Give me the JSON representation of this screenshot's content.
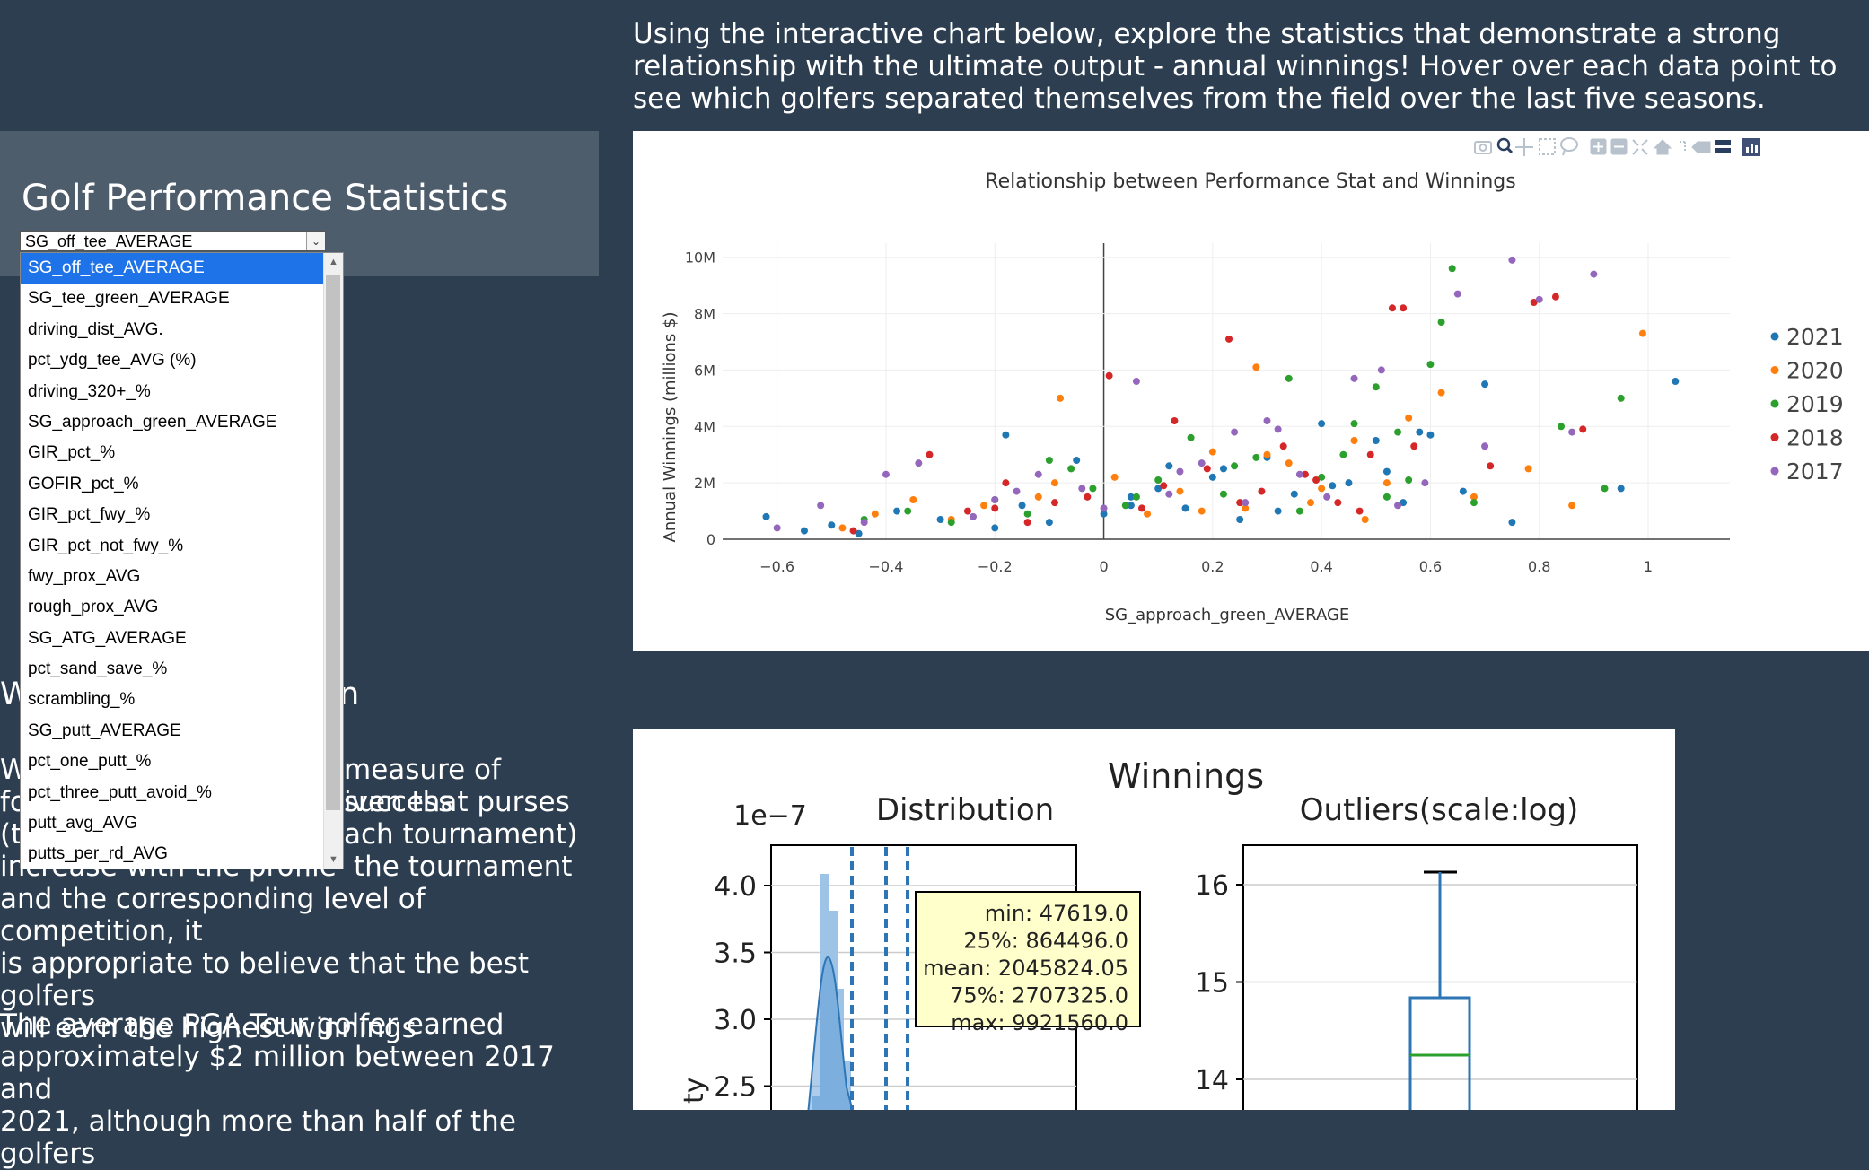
{
  "intro_text": "Using the interactive chart below, explore the statistics that demonstrate a strong relationship with the ultimate output - annual winnings! Hover over each data point to see which golfers separated themselves from the field over the last five seasons.",
  "panel": {
    "title": "Golf Performance Statistics",
    "selected_value": "SG_off_tee_AVERAGE",
    "options": [
      "SG_off_tee_AVERAGE",
      "SG_tee_green_AVERAGE",
      "driving_dist_AVG.",
      "pct_ydg_tee_AVG (%)",
      "driving_320+_%",
      "SG_approach_green_AVERAGE",
      "GIR_pct_%",
      "GOFIR_pct_%",
      "GIR_pct_fwy_%",
      "GIR_pct_not_fwy_%",
      "fwy_prox_AVG",
      "rough_prox_AVG",
      "SG_ATG_AVERAGE",
      "pct_sand_save_%",
      "scrambling_%",
      "SG_putt_AVERAGE",
      "pct_one_putt_%",
      "pct_three_putt_avoid_%",
      "putt_avg_AVG",
      "putts_per_rd_AVG"
    ]
  },
  "left_text": {
    "heading_start": "W",
    "heading_end": "n",
    "para1_line1_start": "W",
    "para1_line1_end": "measure of success",
    "para1_line2_start": "fo",
    "para1_line2_end": "iven that purses",
    "para1_line3_start": "(t",
    "para1_line3_end": "ach tournament)",
    "para1_line4_start": "increase with the profile",
    "para1_line4_end": "the tournament",
    "para1_line5": "and the corresponding level of competition, it",
    "para1_line6": "is appropriate to believe that the best golfers",
    "para1_line7": "will earn the highest winnings",
    "para2_line1": "The average PGA Tour golfer earned",
    "para2_line2": "approximately $2 million between 2017 and",
    "para2_line3": "2021, although more than half of the golfers"
  },
  "chart_data": [
    {
      "type": "scatter",
      "title": "Relationship between Performance Stat and Winnings",
      "xlabel": "SG_approach_green_AVERAGE",
      "ylabel": "Annual Winnings (millions $)",
      "xlim": [
        -0.7,
        1.15
      ],
      "ylim": [
        0,
        10500000
      ],
      "x_ticks": [
        "−0.6",
        "−0.4",
        "−0.2",
        "0",
        "0.2",
        "0.4",
        "0.6",
        "0.8",
        "1"
      ],
      "x_tick_values": [
        -0.6,
        -0.4,
        -0.2,
        0,
        0.2,
        0.4,
        0.6,
        0.8,
        1
      ],
      "y_ticks": [
        "0",
        "2M",
        "4M",
        "6M",
        "8M",
        "10M"
      ],
      "y_tick_values": [
        0,
        2000000,
        4000000,
        6000000,
        8000000,
        10000000
      ],
      "legend_position": "right",
      "series": [
        {
          "name": "2021",
          "color": "#1f77b4",
          "x": [
            -0.62,
            -0.55,
            -0.5,
            -0.45,
            -0.38,
            -0.3,
            -0.2,
            -0.15,
            -0.1,
            -0.05,
            0,
            0.05,
            0.1,
            0.15,
            0.2,
            0.25,
            0.3,
            0.35,
            0.4,
            0.45,
            0.5,
            0.55,
            0.6,
            0.7,
            0.75,
            1.05,
            0.05,
            0.22,
            0.42,
            0.58,
            0.66,
            -0.18,
            0.12,
            0.32,
            0.52,
            0.95
          ],
          "y": [
            800000,
            300000,
            500000,
            200000,
            1000000,
            700000,
            400000,
            1200000,
            600000,
            2800000,
            900000,
            1500000,
            1800000,
            1100000,
            2200000,
            700000,
            2900000,
            1600000,
            4100000,
            2000000,
            3500000,
            1300000,
            3700000,
            5500000,
            600000,
            5600000,
            1200000,
            2500000,
            1900000,
            3800000,
            1700000,
            3700000,
            2600000,
            1000000,
            2400000,
            1800000
          ]
        },
        {
          "name": "2020",
          "color": "#ff7f0e",
          "x": [
            -0.48,
            -0.42,
            -0.35,
            -0.28,
            -0.22,
            -0.12,
            -0.08,
            0.02,
            0.08,
            0.14,
            0.2,
            0.26,
            0.28,
            0.34,
            0.4,
            0.46,
            0.52,
            0.56,
            0.62,
            0.68,
            0.78,
            0.86,
            0.99,
            0.18,
            0.38,
            0.48,
            -0.09,
            0.3
          ],
          "y": [
            400000,
            900000,
            1400000,
            700000,
            1200000,
            1500000,
            5000000,
            2200000,
            900000,
            1700000,
            3100000,
            1100000,
            6100000,
            2700000,
            1800000,
            3500000,
            2000000,
            4300000,
            5200000,
            1500000,
            2500000,
            1200000,
            7300000,
            1000000,
            1300000,
            700000,
            2000000,
            3000000
          ]
        },
        {
          "name": "2019",
          "color": "#2ca02c",
          "x": [
            -0.44,
            -0.36,
            -0.28,
            -0.2,
            -0.14,
            -0.06,
            -0.02,
            0.04,
            0.1,
            0.16,
            0.22,
            0.28,
            0.34,
            0.4,
            0.46,
            0.5,
            0.54,
            0.6,
            0.62,
            0.64,
            0.68,
            0.84,
            0.92,
            0.95,
            -0.1,
            0.06,
            0.24,
            0.36,
            0.44,
            0.56,
            0.52
          ],
          "y": [
            700000,
            1000000,
            600000,
            1400000,
            900000,
            2500000,
            1800000,
            1200000,
            2100000,
            3600000,
            1600000,
            2900000,
            5700000,
            2200000,
            4100000,
            5400000,
            3800000,
            6200000,
            7700000,
            9600000,
            1300000,
            4000000,
            1800000,
            5000000,
            2800000,
            1500000,
            2600000,
            1000000,
            3000000,
            2100000,
            1500000
          ]
        },
        {
          "name": "2018",
          "color": "#d62728",
          "x": [
            -0.46,
            -0.32,
            -0.25,
            -0.18,
            -0.14,
            -0.09,
            -0.03,
            0.01,
            0.07,
            0.13,
            0.19,
            0.23,
            0.29,
            0.33,
            0.39,
            0.43,
            0.49,
            0.53,
            0.55,
            0.57,
            0.71,
            0.83,
            0.79,
            0.88,
            -0.2,
            0.11,
            0.25,
            0.37,
            0.47
          ],
          "y": [
            300000,
            3000000,
            1000000,
            2000000,
            600000,
            1300000,
            1500000,
            5800000,
            1100000,
            4200000,
            2500000,
            7100000,
            1700000,
            3300000,
            2100000,
            1300000,
            3000000,
            8200000,
            8200000,
            3300000,
            2600000,
            8600000,
            8400000,
            3900000,
            1100000,
            1900000,
            1300000,
            2300000,
            1000000
          ]
        },
        {
          "name": "2017",
          "color": "#9467bd",
          "x": [
            -0.6,
            -0.52,
            -0.44,
            -0.4,
            -0.34,
            -0.24,
            -0.2,
            -0.12,
            -0.04,
            0,
            0.06,
            0.12,
            0.18,
            0.24,
            0.3,
            0.36,
            0.41,
            0.46,
            0.51,
            0.54,
            0.59,
            0.65,
            0.7,
            0.75,
            0.8,
            0.86,
            0.9,
            -0.16,
            0.14,
            0.26,
            0.32
          ],
          "y": [
            400000,
            1200000,
            600000,
            2300000,
            2700000,
            800000,
            1400000,
            2300000,
            1800000,
            1100000,
            5600000,
            1600000,
            2700000,
            3800000,
            4200000,
            2300000,
            1500000,
            5700000,
            6000000,
            1200000,
            2000000,
            8700000,
            3300000,
            9900000,
            8500000,
            3800000,
            9400000,
            1700000,
            2400000,
            1300000,
            3900000
          ]
        }
      ]
    },
    {
      "type": "histogram",
      "title": "Distribution",
      "suptitle": "Winnings",
      "scale_label": "1e−7",
      "y_ticks": [
        "4.0",
        "3.5",
        "3.0",
        "2.5"
      ],
      "y_tick_values": [
        4.0,
        3.5,
        3.0,
        2.5
      ],
      "ylabel_fragment": "ty",
      "stats_box": [
        "min: 47619.0",
        "25%: 864496.0",
        "mean: 2045824.05",
        "75%: 2707325.0",
        "max: 9921560.0"
      ]
    },
    {
      "type": "box",
      "title": "Outliers(scale:log)",
      "y_ticks": [
        "16",
        "15",
        "14"
      ],
      "y_tick_values": [
        16,
        15,
        14
      ]
    }
  ],
  "colors": {
    "background": "#2c3e50",
    "panel": "#4e5d6c",
    "select_highlight": "#1e73e8"
  },
  "toolbar_icons": [
    "camera-icon",
    "zoom-icon",
    "pan-icon",
    "box-select-icon",
    "lasso-icon",
    "zoom-in-icon",
    "zoom-out-icon",
    "autoscale-icon",
    "reset-axes-icon",
    "spike-lines-icon",
    "hover-closest-icon",
    "hover-compare-icon",
    "plotly-logo-icon"
  ]
}
